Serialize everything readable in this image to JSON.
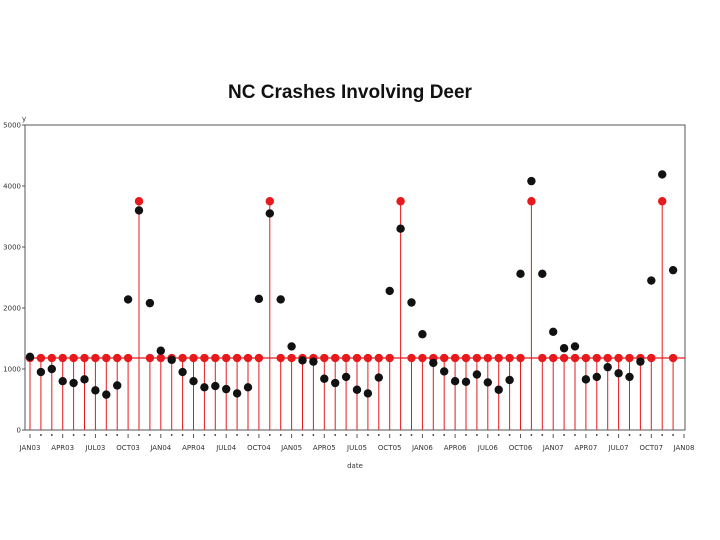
{
  "chart_data": {
    "type": "scatter",
    "title": "NC Crashes Involving Deer",
    "xlabel": "date",
    "ylabel": "y",
    "ylim": [
      0,
      5000
    ],
    "yticks": [
      0,
      1000,
      2000,
      3000,
      4000,
      5000
    ],
    "xticks": [
      "JAN03",
      "APR03",
      "JUL03",
      "OCT03",
      "JAN04",
      "APR04",
      "JUL04",
      "OCT04",
      "JAN05",
      "APR05",
      "JUL05",
      "OCT05",
      "JAN06",
      "APR06",
      "JUL06",
      "OCT06",
      "JAN07",
      "APR07",
      "JUL07",
      "OCT07",
      "JAN08"
    ],
    "grid": false,
    "x": [
      "JAN03",
      "FEB03",
      "MAR03",
      "APR03",
      "MAY03",
      "JUN03",
      "JUL03",
      "AUG03",
      "SEP03",
      "OCT03",
      "NOV03",
      "DEC03",
      "JAN04",
      "FEB04",
      "MAR04",
      "APR04",
      "MAY04",
      "JUN04",
      "JUL04",
      "AUG04",
      "SEP04",
      "OCT04",
      "NOV04",
      "DEC04",
      "JAN05",
      "FEB05",
      "MAR05",
      "APR05",
      "MAY05",
      "JUN05",
      "JUL05",
      "AUG05",
      "SEP05",
      "OCT05",
      "NOV05",
      "DEC05",
      "JAN06",
      "FEB06",
      "MAR06",
      "APR06",
      "MAY06",
      "JUN06",
      "JUL06",
      "AUG06",
      "SEP06",
      "OCT06",
      "NOV06",
      "DEC06",
      "JAN07",
      "FEB07",
      "MAR07",
      "APR07",
      "MAY07",
      "JUN07",
      "JUL07",
      "AUG07",
      "SEP07",
      "OCT07",
      "NOV07",
      "DEC07"
    ],
    "series": [
      {
        "color": "#111111",
        "marker": "circle",
        "values": [
          1200,
          950,
          1000,
          800,
          770,
          830,
          650,
          580,
          730,
          2140,
          3600,
          2080,
          1300,
          1150,
          950,
          800,
          700,
          720,
          670,
          600,
          700,
          2150,
          3550,
          2140,
          1370,
          1140,
          1120,
          840,
          770,
          870,
          660,
          600,
          860,
          2280,
          3300,
          2090,
          1570,
          1100,
          960,
          800,
          790,
          910,
          780,
          660,
          820,
          2560,
          4080,
          2560,
          1610,
          1340,
          1370,
          830,
          870,
          1030,
          930,
          870,
          1120,
          2450,
          4190,
          2620
        ]
      },
      {
        "color": "#e8191c",
        "marker": "circle",
        "stem_baseline": 0,
        "values": [
          1180,
          1180,
          1180,
          1180,
          1180,
          1180,
          1180,
          1180,
          1180,
          1180,
          3750,
          1180,
          1180,
          1180,
          1180,
          1180,
          1180,
          1180,
          1180,
          1180,
          1180,
          1180,
          3750,
          1180,
          1180,
          1180,
          1180,
          1180,
          1180,
          1180,
          1180,
          1180,
          1180,
          1180,
          3750,
          1180,
          1180,
          1180,
          1180,
          1180,
          1180,
          1180,
          1180,
          1180,
          1180,
          1180,
          3750,
          1180,
          1180,
          1180,
          1180,
          1180,
          1180,
          1180,
          1180,
          1180,
          1180,
          1180,
          3750,
          1180
        ]
      }
    ],
    "reference_line": {
      "y": 1180,
      "color": "#e8191c"
    }
  }
}
